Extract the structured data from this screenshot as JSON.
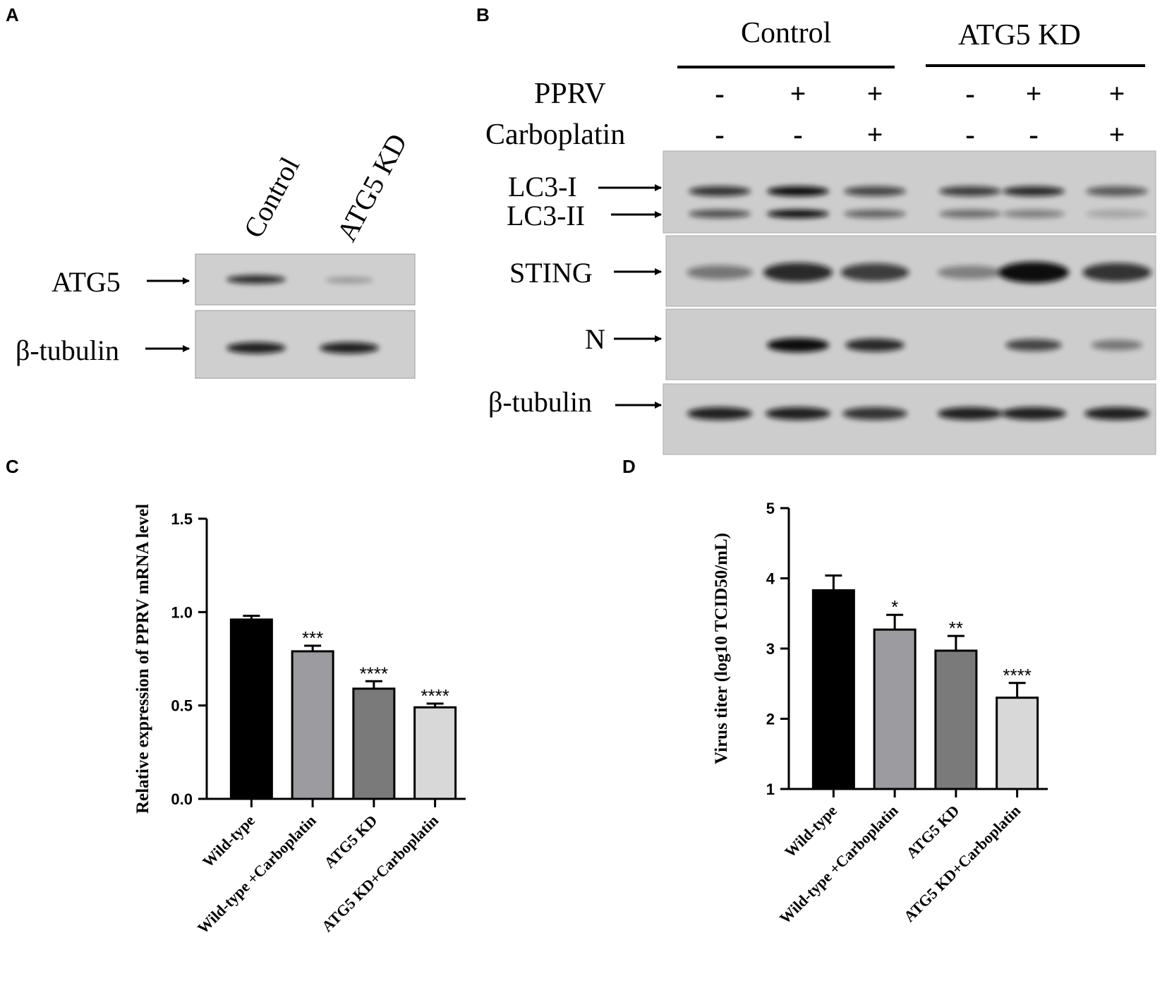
{
  "panel_labels": {
    "a": "A",
    "b": "B",
    "c": "C",
    "d": "D"
  },
  "panel_a": {
    "lanes": [
      "Control",
      "ATG5 KD"
    ],
    "rows": [
      {
        "label": "ATG5",
        "bands": [
          0.85,
          0.3
        ]
      },
      {
        "label": "β-tubulin",
        "bands": [
          0.9,
          0.9
        ]
      }
    ]
  },
  "panel_b": {
    "groups": [
      "Control",
      "ATG5 KD"
    ],
    "conditions": [
      {
        "label": "PPRV",
        "values": [
          "-",
          "+",
          "+",
          "-",
          "+",
          "+"
        ]
      },
      {
        "label": "Carboplatin",
        "values": [
          "-",
          "-",
          "+",
          "-",
          "-",
          "+"
        ]
      }
    ],
    "blots": [
      {
        "labels": [
          "LC3-I",
          "LC3-II"
        ],
        "bands_top": [
          0.8,
          1.0,
          0.7,
          0.75,
          0.85,
          0.6
        ],
        "bands_bottom": [
          0.65,
          1.0,
          0.55,
          0.5,
          0.4,
          0.2
        ]
      },
      {
        "labels": [
          "STING"
        ],
        "bands": [
          0.45,
          0.85,
          0.75,
          0.4,
          1.0,
          0.8
        ]
      },
      {
        "labels": [
          "N"
        ],
        "bands": [
          0.0,
          1.0,
          0.85,
          0.0,
          0.7,
          0.45
        ]
      },
      {
        "labels": [
          "β-tubulin"
        ],
        "bands": [
          0.9,
          0.9,
          0.8,
          0.9,
          0.9,
          0.9
        ]
      }
    ]
  },
  "chart_data": [
    {
      "type": "bar",
      "panel": "C",
      "ylabel": "Relative expression of PPRV mRNA level",
      "categories": [
        "Wild-type",
        "Wild-type +Carboplatin",
        "ATG5 KD",
        "ATG5 KD+Carboplatin"
      ],
      "values": [
        0.96,
        0.79,
        0.59,
        0.49
      ],
      "errors": [
        0.02,
        0.03,
        0.04,
        0.02
      ],
      "significance": [
        "",
        "***",
        "****",
        "****"
      ],
      "colors": [
        "#000000",
        "#9b9ba0",
        "#7a7a7a",
        "#d8d8d8"
      ],
      "ylim": [
        0,
        1.5
      ],
      "yticks": [
        "0.0",
        "0.5",
        "1.0",
        "1.5"
      ]
    },
    {
      "type": "bar",
      "panel": "D",
      "ylabel": "Virus titer (log10 TCID50/mL)",
      "categories": [
        "Wild-type",
        "Wild-type +Carboplatin",
        "ATG5 KD",
        "ATG5 KD+Carboplatin"
      ],
      "values": [
        3.83,
        3.27,
        2.97,
        2.3
      ],
      "errors": [
        0.21,
        0.21,
        0.21,
        0.21
      ],
      "significance": [
        "",
        "*",
        "**",
        "****"
      ],
      "colors": [
        "#000000",
        "#9b9ba0",
        "#7a7a7a",
        "#d8d8d8"
      ],
      "ylim": [
        1,
        5
      ],
      "yticks": [
        "1",
        "2",
        "3",
        "4",
        "5"
      ]
    }
  ]
}
